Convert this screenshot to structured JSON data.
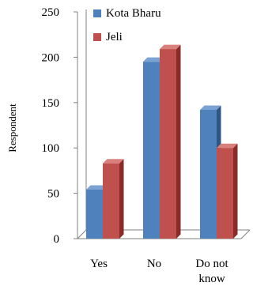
{
  "chart_data": {
    "type": "bar",
    "style": "3d-clustered",
    "categories": [
      [
        "Yes"
      ],
      [
        "No"
      ],
      [
        "Do not",
        "know"
      ]
    ],
    "series": [
      {
        "name": "Kota Bharu",
        "values": [
          54,
          195,
          142
        ]
      },
      {
        "name": "Jeli",
        "values": [
          83,
          209,
          100
        ]
      }
    ],
    "title": "",
    "xlabel": "",
    "ylabel": "Respondent",
    "ylim": [
      0,
      250
    ],
    "yticks": [
      0,
      50,
      100,
      150,
      200,
      250
    ],
    "grid": false,
    "legend_position": "top-right",
    "colors": {
      "Kota Bharu": {
        "front": "#4f81bd",
        "side": "#2f5584",
        "top": "#7ba2d3"
      },
      "Jeli": {
        "front": "#c0504d",
        "side": "#8a2b29",
        "top": "#d9807d"
      },
      "axis": "#808080"
    }
  }
}
